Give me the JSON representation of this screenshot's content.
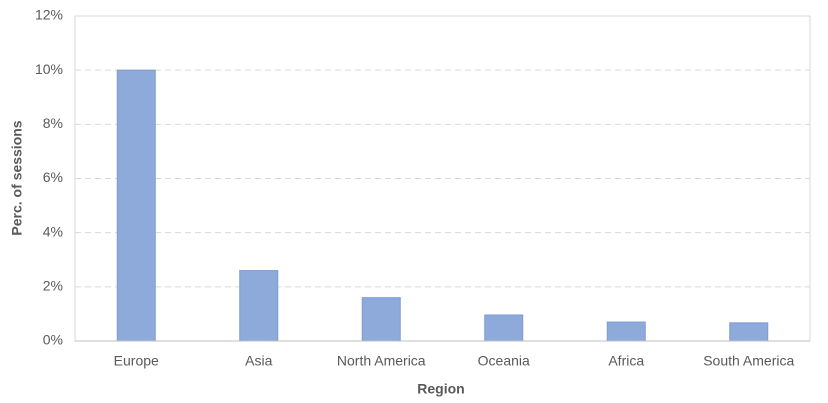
{
  "chart_data": {
    "type": "bar",
    "x_label": "Region",
    "y_label": "Perc. of sessions",
    "categories": [
      "Europe",
      "Asia",
      "North America",
      "Oceania",
      "Africa",
      "South America"
    ],
    "values": [
      10.0,
      2.6,
      1.6,
      0.96,
      0.7,
      0.67
    ],
    "color": "#8eaadb",
    "ylim": [
      0,
      12
    ],
    "yticks": [
      {
        "value": 0,
        "label": "0%"
      },
      {
        "value": 2,
        "label": "2%"
      },
      {
        "value": 4,
        "label": "4%"
      },
      {
        "value": 6,
        "label": "6%"
      },
      {
        "value": 8,
        "label": "8%"
      },
      {
        "value": 10,
        "label": "10%"
      },
      {
        "value": 12,
        "label": "12%"
      }
    ],
    "grid": true
  }
}
